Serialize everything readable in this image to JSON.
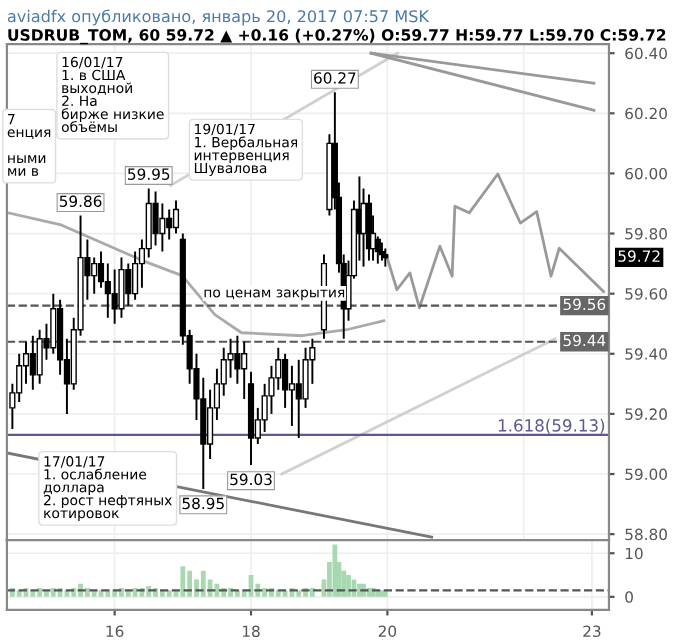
{
  "chart_data": [
    {
      "type": "candlestick",
      "title": "aviadfx опубликовано, январь 20, 2017 07:57 MSK",
      "subtitle": "USDRUB_TOM, 60 59.72 ▲ +0.16 (+0.27%) O:59.77 H:59.77 L:59.70 C:59.72",
      "x": [
        14.5,
        14.6,
        14.7,
        14.8,
        14.9,
        15.0,
        15.1,
        15.2,
        15.3,
        15.4,
        15.5,
        15.6,
        15.7,
        15.8,
        15.9,
        16.0,
        16.1,
        16.2,
        16.3,
        16.4,
        16.5,
        16.6,
        16.7,
        16.8,
        16.9,
        17.0,
        17.1,
        17.2,
        17.3,
        17.4,
        17.5,
        17.6,
        17.7,
        17.8,
        17.9,
        18.0,
        18.1,
        18.2,
        18.3,
        18.4,
        18.5,
        18.6,
        18.7,
        18.8,
        18.9,
        19.07,
        19.15,
        19.23,
        19.29,
        19.36,
        19.43,
        19.51,
        19.59,
        19.65,
        19.73,
        19.79,
        19.86,
        19.92,
        19.97
      ],
      "ohlc": [
        [
          59.22,
          59.3,
          59.15,
          59.27
        ],
        [
          59.27,
          59.4,
          59.24,
          59.36
        ],
        [
          59.36,
          59.44,
          59.3,
          59.4
        ],
        [
          59.4,
          59.46,
          59.28,
          59.33
        ],
        [
          59.33,
          59.48,
          59.3,
          59.45
        ],
        [
          59.45,
          59.5,
          59.38,
          59.42
        ],
        [
          59.42,
          59.6,
          59.4,
          59.55
        ],
        [
          59.55,
          59.58,
          59.33,
          59.38
        ],
        [
          59.38,
          59.45,
          59.2,
          59.3
        ],
        [
          59.3,
          59.52,
          59.28,
          59.48
        ],
        [
          59.48,
          59.86,
          59.46,
          59.72
        ],
        [
          59.72,
          59.78,
          59.58,
          59.66
        ],
        [
          59.66,
          59.72,
          59.6,
          59.7
        ],
        [
          59.7,
          59.74,
          59.62,
          59.64
        ],
        [
          59.64,
          59.7,
          59.52,
          59.6
        ],
        [
          59.6,
          59.68,
          59.5,
          59.55
        ],
        [
          59.55,
          59.72,
          59.52,
          59.68
        ],
        [
          59.68,
          59.7,
          59.56,
          59.6
        ],
        [
          59.6,
          59.74,
          59.58,
          59.7
        ],
        [
          59.7,
          59.78,
          59.62,
          59.75
        ],
        [
          59.75,
          59.95,
          59.72,
          59.9
        ],
        [
          59.9,
          59.94,
          59.76,
          59.8
        ],
        [
          59.8,
          59.9,
          59.74,
          59.85
        ],
        [
          59.85,
          59.88,
          59.78,
          59.82
        ],
        [
          59.82,
          59.91,
          59.8,
          59.88
        ],
        [
          59.78,
          59.8,
          59.43,
          59.46
        ],
        [
          59.46,
          59.48,
          59.3,
          59.35
        ],
        [
          59.35,
          59.4,
          59.18,
          59.25
        ],
        [
          59.25,
          59.32,
          58.95,
          59.1
        ],
        [
          59.1,
          59.28,
          59.05,
          59.22
        ],
        [
          59.22,
          59.35,
          59.18,
          59.3
        ],
        [
          59.3,
          59.42,
          59.26,
          59.38
        ],
        [
          59.38,
          59.45,
          59.32,
          59.4
        ],
        [
          59.4,
          59.46,
          59.3,
          59.35
        ],
        [
          59.35,
          59.44,
          59.25,
          59.4
        ],
        [
          59.3,
          59.34,
          59.03,
          59.12
        ],
        [
          59.12,
          59.22,
          59.1,
          59.18
        ],
        [
          59.18,
          59.3,
          59.14,
          59.26
        ],
        [
          59.26,
          59.36,
          59.2,
          59.32
        ],
        [
          59.32,
          59.42,
          59.28,
          59.38
        ],
        [
          59.38,
          59.4,
          59.22,
          59.28
        ],
        [
          59.28,
          59.36,
          59.16,
          59.3
        ],
        [
          59.3,
          59.38,
          59.12,
          59.25
        ],
        [
          59.25,
          59.42,
          59.22,
          59.38
        ],
        [
          59.38,
          59.45,
          59.3,
          59.42
        ],
        [
          59.48,
          59.73,
          59.45,
          59.7
        ],
        [
          59.88,
          60.13,
          59.86,
          60.1
        ],
        [
          60.1,
          60.27,
          59.88,
          59.92
        ],
        [
          59.92,
          59.97,
          59.67,
          59.7
        ],
        [
          59.7,
          59.73,
          59.45,
          59.55
        ],
        [
          59.55,
          59.71,
          59.51,
          59.66
        ],
        [
          59.66,
          59.91,
          59.65,
          59.88
        ],
        [
          59.88,
          59.99,
          59.71,
          59.8
        ],
        [
          59.8,
          59.95,
          59.69,
          59.9
        ],
        [
          59.9,
          59.93,
          59.71,
          59.75
        ],
        [
          59.75,
          59.86,
          59.71,
          59.8
        ],
        [
          59.78,
          59.79,
          59.7,
          59.74
        ],
        [
          59.74,
          59.77,
          59.71,
          59.73
        ],
        [
          59.73,
          59.75,
          59.69,
          59.72
        ]
      ],
      "color": "#000000",
      "series": [
        {
          "type": "line",
          "color": "#999999",
          "x": [
            19.99,
            20.14,
            20.33,
            20.47,
            20.77,
            20.95,
            20.99,
            21.2,
            21.62,
            21.95,
            22.19,
            22.4,
            22.52,
            23.17
          ],
          "values": [
            59.725,
            59.613,
            59.669,
            59.553,
            59.758,
            59.658,
            59.891,
            59.869,
            59.998,
            59.835,
            59.873,
            59.658,
            59.751,
            59.607
          ]
        },
        {
          "type": "line",
          "color": "#aaaaaa",
          "x": [
            14.42,
            15.2,
            16.41,
            16.99,
            17.47,
            17.86,
            18.75,
            19.4,
            19.95
          ],
          "values": [
            59.87,
            59.83,
            59.71,
            59.66,
            59.53,
            59.47,
            59.46,
            59.48,
            59.51
          ]
        },
        {
          "type": "line",
          "color": "#d0d0d0",
          "x": [
            16.82,
            20.15
          ],
          "values": [
            59.96,
            60.4
          ]
        },
        {
          "type": "line",
          "color": "#d0d0d0",
          "x": [
            18.45,
            22.46
          ],
          "values": [
            59.0,
            59.45
          ]
        },
        {
          "type": "line",
          "color": "#777777",
          "x": [
            14.42,
            20.65
          ],
          "values": [
            59.07,
            58.79
          ]
        },
        {
          "type": "line",
          "color": "#999999",
          "x": [
            19.76,
            23.03
          ],
          "values": [
            60.4,
            60.3
          ]
        },
        {
          "type": "line",
          "color": "#999999",
          "x": [
            19.76,
            23.03
          ],
          "values": [
            60.4,
            60.21
          ]
        }
      ],
      "ref_lines": [
        {
          "axis": "y",
          "value": 59.56,
          "label": "59.56",
          "color": "#555555",
          "line_style": "dashed"
        },
        {
          "axis": "y",
          "value": 59.44,
          "label": "59.44",
          "color": "#555555",
          "line_style": "dashed"
        },
        {
          "axis": "y",
          "value": 59.13,
          "label": "1.618(59.13)",
          "color": "#5a5a8c",
          "line_style": "solid"
        }
      ],
      "annotations": [
        "16/01/17\n1. в США\nвыходной\n2. На\nбирже низкие\nобъёмы",
        "19/01/17\n1. Вербальная\nинтервенция\nШувалова",
        "17/01/17\n1. ослабление\nдоллара\n2. рост нефтяных\nкотировок",
        "7\nенция\n\nными\nми в",
        {
          "text": "59.86",
          "x": 15.5,
          "y": 59.86
        },
        {
          "text": "59.95",
          "x": 16.5,
          "y": 59.95
        },
        {
          "text": "60.27",
          "x": 19.23,
          "y": 60.27
        },
        {
          "text": "58.95",
          "x": 17.3,
          "y": 58.95
        },
        {
          "text": "59.03",
          "x": 18.0,
          "y": 59.03
        },
        {
          "text": "по ценам закрытия",
          "x": 17.3,
          "y": 59.56
        },
        "59.72"
      ],
      "xlim": [
        14.42,
        23.25
      ],
      "ylim": [
        58.78,
        60.43
      ],
      "yticks": [
        {
          "value": 58.8,
          "label": "58.80"
        },
        {
          "value": 59.0,
          "label": "59.00"
        },
        {
          "value": 59.2,
          "label": "59.20"
        },
        {
          "value": 59.4,
          "label": "59.40"
        },
        {
          "value": 59.6,
          "label": "59.60"
        },
        {
          "value": 59.8,
          "label": "59.80"
        },
        {
          "value": 60.0,
          "label": "60.00"
        },
        {
          "value": 60.2,
          "label": "60.20"
        },
        {
          "value": 60.4,
          "label": "60.40"
        }
      ],
      "tick_labels": "y",
      "grid": true
    },
    {
      "type": "bar",
      "color": "#a8d8b0",
      "x": [
        14.5,
        14.6,
        14.7,
        14.8,
        14.9,
        15.0,
        15.1,
        15.2,
        15.3,
        15.4,
        15.5,
        15.6,
        15.7,
        15.8,
        15.9,
        16.0,
        16.1,
        16.2,
        16.3,
        16.4,
        16.5,
        16.6,
        16.7,
        16.8,
        16.9,
        17.0,
        17.1,
        17.2,
        17.3,
        17.4,
        17.5,
        17.6,
        17.7,
        17.8,
        17.9,
        18.0,
        18.1,
        18.2,
        18.3,
        18.4,
        18.5,
        18.6,
        18.7,
        18.8,
        18.9,
        19.07,
        19.15,
        19.23,
        19.29,
        19.36,
        19.43,
        19.51,
        19.59,
        19.65,
        19.73,
        19.79,
        19.86,
        19.92,
        19.97
      ],
      "values": [
        2,
        1.5,
        2,
        1.5,
        2,
        1.5,
        2,
        2,
        1.5,
        2,
        3,
        2,
        1.5,
        1.5,
        1.5,
        1.5,
        2,
        1.5,
        2,
        2,
        2.5,
        2,
        1.5,
        1.5,
        1.5,
        7,
        6,
        4,
        6,
        4,
        3,
        2,
        2,
        1.5,
        1.5,
        5,
        3,
        2,
        2,
        1.5,
        1.5,
        2,
        1.5,
        2,
        2,
        4,
        8,
        12,
        8,
        6,
        5,
        4,
        3,
        3,
        2,
        2,
        1.5,
        1.5,
        1.5
      ],
      "ref_lines": [
        {
          "axis": "y",
          "value": 1.5,
          "color": "#555555",
          "line_style": "dashed"
        }
      ],
      "xlim": [
        14.42,
        23.25
      ],
      "ylim": [
        -3,
        13
      ],
      "yticks": [
        0,
        10
      ],
      "xticks": [
        16,
        18,
        20,
        23
      ],
      "grid": true
    }
  ]
}
